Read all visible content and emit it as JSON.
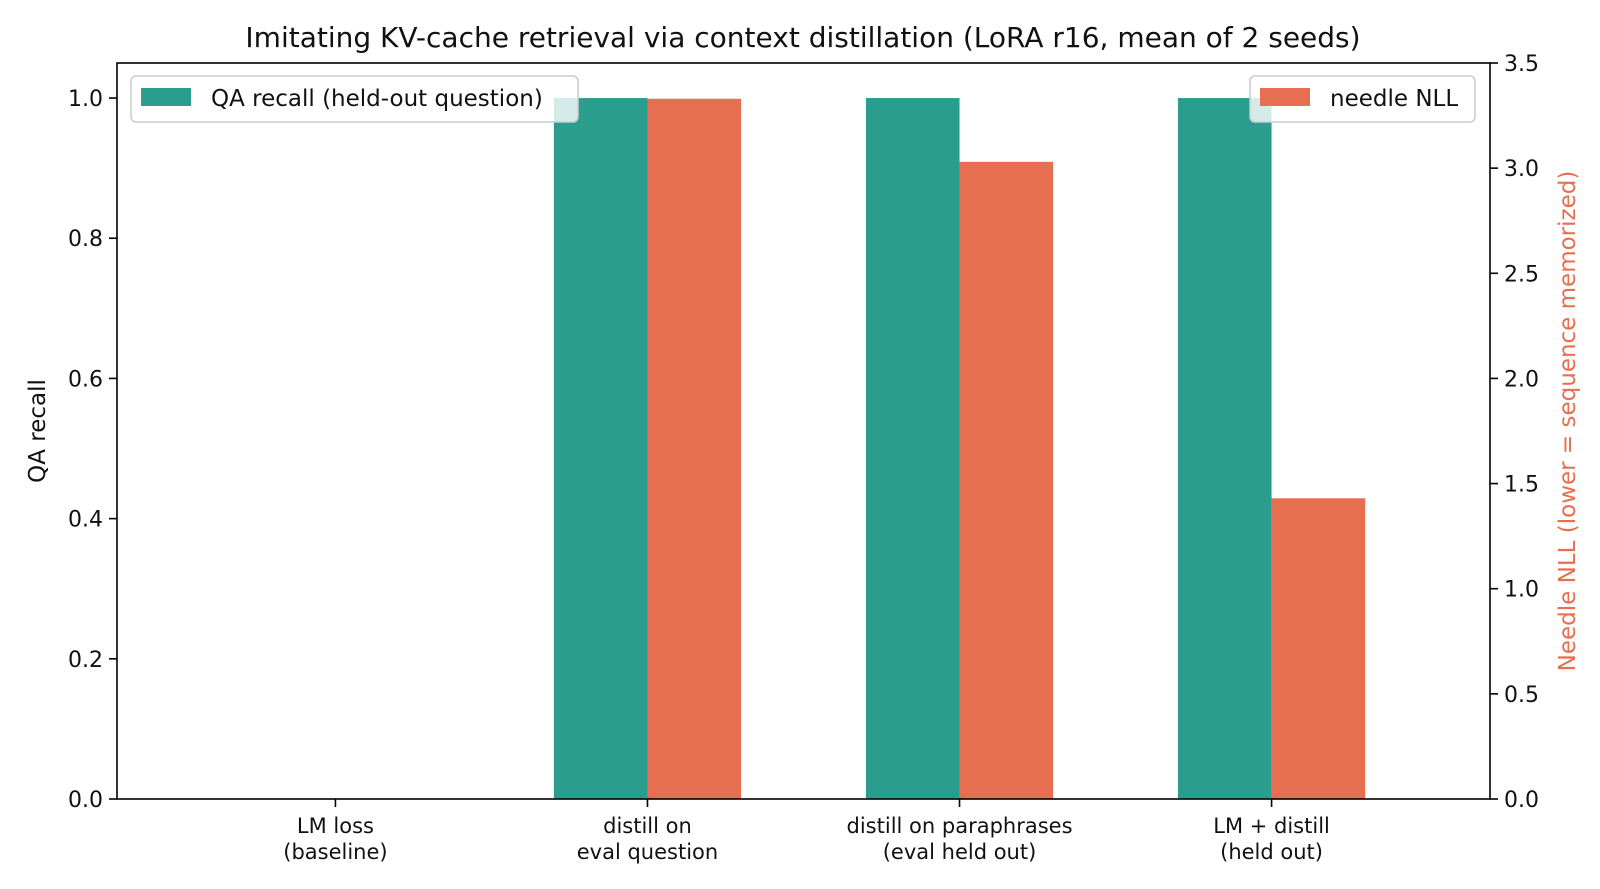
{
  "chart_data": {
    "type": "bar",
    "title": "Imitating KV-cache retrieval via context distillation (LoRA r16, mean of 2 seeds)",
    "categories": [
      [
        "LM loss",
        "(baseline)"
      ],
      [
        "distill on",
        "eval question"
      ],
      [
        "distill on paraphrases",
        "(eval held out)"
      ],
      [
        "LM + distill",
        "(held out)"
      ]
    ],
    "series": [
      {
        "name": "QA recall (held-out question)",
        "axis": "left",
        "color": "#2a9d8f",
        "values": [
          0.0,
          1.0,
          1.0,
          1.0
        ]
      },
      {
        "name": "needle NLL",
        "axis": "right",
        "color": "#e76f51",
        "values": [
          0.0,
          3.33,
          3.03,
          1.43
        ]
      }
    ],
    "ylabel": "QA recall",
    "ylabel_right": "Needle NLL (lower = sequence memorized)",
    "ylim": [
      0,
      1.05
    ],
    "ylim_right": [
      0,
      3.5
    ],
    "yticks": [
      "0.0",
      "0.2",
      "0.4",
      "0.6",
      "0.8",
      "1.0"
    ],
    "yticks_right": [
      "0.0",
      "0.5",
      "1.0",
      "1.5",
      "2.0",
      "2.5",
      "3.0",
      "3.5"
    ],
    "ylabel_right_color": "#e76f51",
    "grid": false,
    "legend_left": "top-left",
    "legend_right": "top-right"
  }
}
